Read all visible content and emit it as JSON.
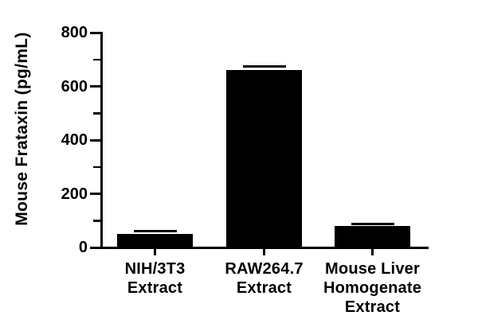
{
  "figure": {
    "background_color": "#ffffff",
    "ink_color": "#000000"
  },
  "chart_data": {
    "type": "bar",
    "title": "",
    "ylabel": "Mouse Frataxin (pg/mL)",
    "xlabel": "",
    "ylim": [
      0,
      800
    ],
    "y_major_ticks": [
      0,
      200,
      400,
      600,
      800
    ],
    "y_minor_ticks": [
      100,
      300,
      500,
      700
    ],
    "categories": [
      "NIH/3T3 Extract",
      "RAW264.7 Extract",
      "Mouse Liver Homogenate Extract"
    ],
    "category_label_lines": [
      [
        "NIH/3T3",
        "Extract"
      ],
      [
        "RAW264.7",
        "Extract"
      ],
      [
        "Mouse Liver",
        "Homogenate",
        "Extract"
      ]
    ],
    "values": [
      50,
      660,
      80
    ],
    "errors": [
      10,
      13,
      8
    ],
    "bar_color": "#000000",
    "grid": false,
    "legend": "none"
  }
}
